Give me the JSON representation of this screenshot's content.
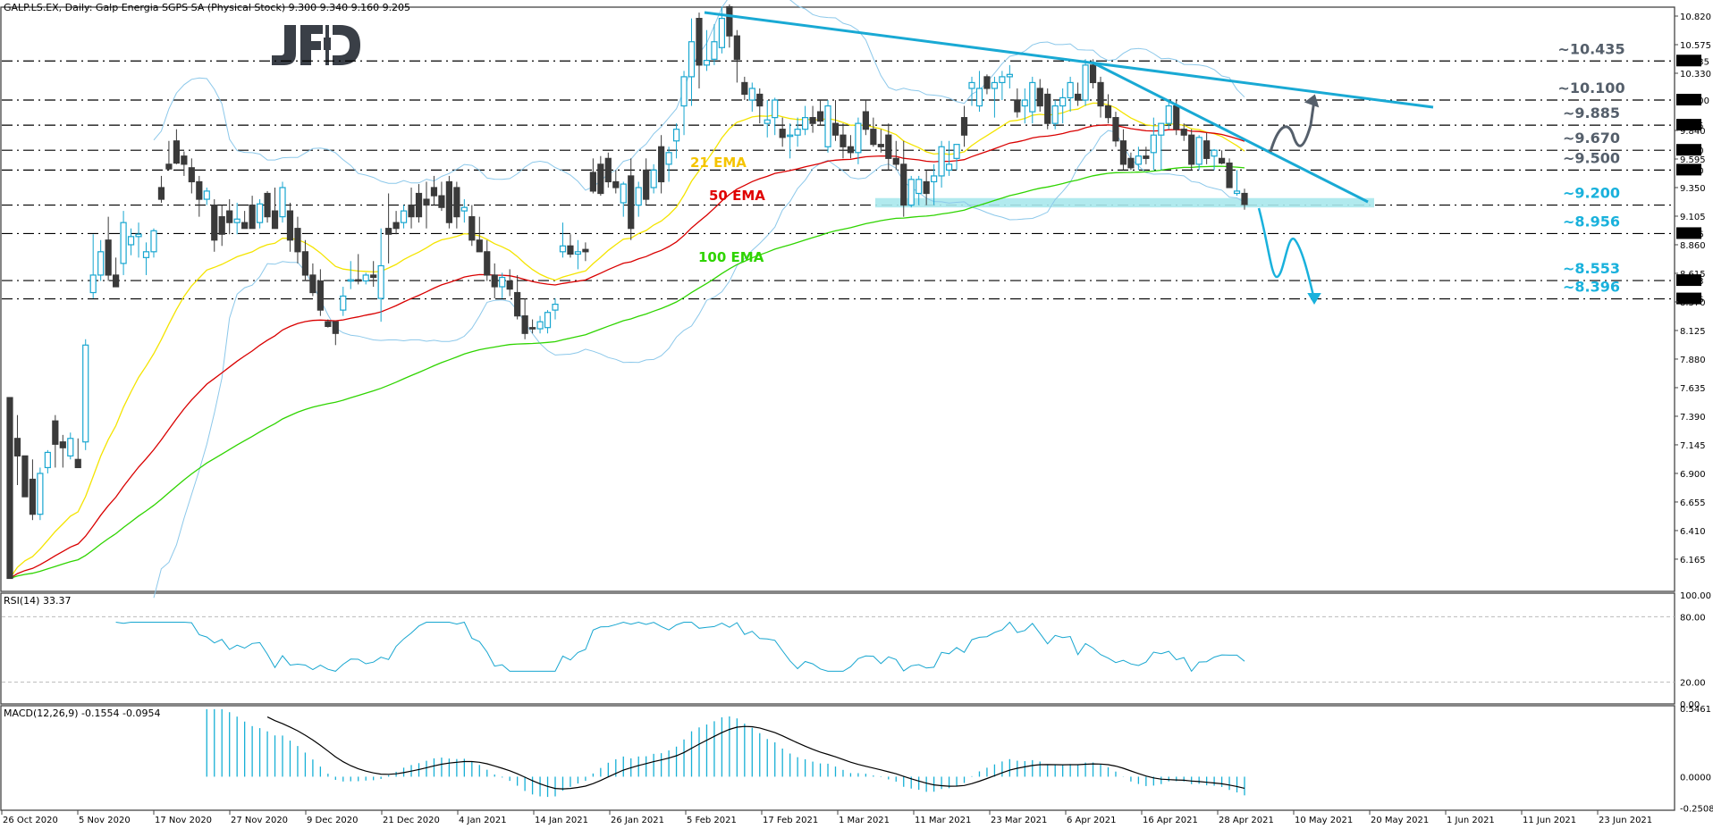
{
  "header": {
    "symbol": "GALP.LS.EX",
    "timeframe": "Daily",
    "instrument": "Galp Energia SGPS SA (Physical Stock)",
    "ohlc": "9.300 9.340 9.160 9.205",
    "title": "GALP.LS.EX, Daily:  Galp Energia SGPS SA (Physical Stock)  9.300 9.340 9.160 9.205"
  },
  "logo": "JFD",
  "colors": {
    "bull": "#17a6d0",
    "bear": "#3a3a3a",
    "trend": "#19a9d4",
    "band": "#a8e8ec",
    "bollinger": "#8cc8ea",
    "ema21": "#f4e400",
    "ema50": "#d90000",
    "ema100": "#2fd400",
    "level_grey": "#555f6b",
    "level_blue": "#19b1dc",
    "rsi": "#17a6d0",
    "macd_hist": "#17b0d6",
    "macd_signal": "#000000"
  },
  "rsi": {
    "label": "RSI(14) 33.37"
  },
  "macd": {
    "label": "MACD(12,26,9) -0.1554 -0.0954"
  },
  "chart_data": [
    {
      "type": "candlestick",
      "title": "GALP.LS.EX, Daily: Galp Energia SGPS SA (Physical Stock)",
      "ohlc_last": {
        "open": 9.3,
        "high": 9.34,
        "low": 9.16,
        "close": 9.205
      },
      "x_tick_labels": [
        "26 Oct 2020",
        "5 Nov 2020",
        "17 Nov 2020",
        "27 Nov 2020",
        "9 Dec 2020",
        "21 Dec 2020",
        "4 Jan 2021",
        "14 Jan 2021",
        "26 Jan 2021",
        "5 Feb 2021",
        "17 Feb 2021",
        "1 Mar 2021",
        "11 Mar 2021",
        "23 Mar 2021",
        "6 Apr 2021",
        "16 Apr 2021",
        "28 Apr 2021",
        "10 May 2021",
        "20 May 2021",
        "1 Jun 2021",
        "11 Jun 2021",
        "23 Jun 2021"
      ],
      "y_tick_labels": [
        "10.820",
        "10.575",
        "10.330",
        "9.840",
        "9.595",
        "9.350",
        "9.105",
        "8.860",
        "8.615",
        "8.370",
        "8.125",
        "7.880",
        "7.635",
        "7.390",
        "7.145",
        "6.900",
        "6.655",
        "6.410",
        "6.165"
      ],
      "ylim": [
        6.0,
        10.9
      ],
      "grid": false,
      "horizontal_levels": [
        {
          "value": 10.435,
          "label": "~10.435",
          "tag": "10.435",
          "color": "grey"
        },
        {
          "value": 10.1,
          "label": "~10.100",
          "tag": "10.100",
          "color": "grey"
        },
        {
          "value": 9.885,
          "label": "~9.885",
          "tag": "9.885",
          "color": "grey"
        },
        {
          "value": 9.67,
          "label": "~9.670",
          "tag": "9.670",
          "color": "grey"
        },
        {
          "value": 9.5,
          "label": "~9.500",
          "tag": "9.500",
          "color": "grey"
        },
        {
          "value": 9.2,
          "label": "~9.200",
          "tag": "",
          "color": "blue"
        },
        {
          "value": 8.956,
          "label": "~8.956",
          "tag": "8.956",
          "color": "blue"
        },
        {
          "value": 8.553,
          "label": "~8.553",
          "tag": "8.553",
          "color": "blue"
        },
        {
          "value": 8.396,
          "label": "~8.396",
          "tag": "8.396",
          "color": "blue"
        }
      ],
      "indicator_labels": [
        {
          "name": "21 EMA",
          "color": "#f5c400"
        },
        {
          "name": "50 EMA",
          "color": "#e00000"
        },
        {
          "name": "100 EMA",
          "color": "#2fd400"
        }
      ],
      "candles": [
        [
          7.55,
          7.55,
          6.0,
          6.0
        ],
        [
          7.2,
          7.4,
          6.8,
          7.05
        ],
        [
          7.05,
          7.05,
          6.7,
          6.7
        ],
        [
          6.85,
          7.02,
          6.5,
          6.55
        ],
        [
          6.55,
          6.95,
          6.5,
          6.9
        ],
        [
          6.95,
          7.1,
          6.9,
          7.08
        ],
        [
          7.35,
          7.4,
          6.95,
          7.15
        ],
        [
          7.17,
          7.23,
          6.95,
          7.12
        ],
        [
          7.05,
          7.25,
          7.02,
          7.2
        ],
        [
          7.02,
          7.2,
          6.95,
          6.95
        ],
        [
          7.17,
          8.05,
          7.1,
          8.0
        ],
        [
          8.45,
          8.95,
          8.4,
          8.6
        ],
        [
          8.6,
          8.9,
          8.55,
          8.8
        ],
        [
          8.9,
          9.1,
          8.55,
          8.6
        ],
        [
          8.6,
          8.75,
          8.55,
          8.5
        ],
        [
          8.7,
          9.15,
          8.6,
          9.05
        ],
        [
          8.86,
          9.0,
          8.77,
          8.93
        ],
        [
          8.93,
          9.05,
          8.75,
          8.95
        ],
        [
          8.75,
          8.88,
          8.6,
          8.8
        ],
        [
          8.8,
          9.0,
          8.75,
          8.98
        ],
        [
          9.35,
          9.45,
          9.22,
          9.25
        ],
        [
          9.55,
          9.75,
          9.5,
          9.51
        ],
        [
          9.75,
          9.85,
          9.55,
          9.56
        ],
        [
          9.62,
          9.66,
          9.45,
          9.55
        ],
        [
          9.52,
          9.6,
          9.3,
          9.4
        ],
        [
          9.4,
          9.45,
          9.1,
          9.25
        ],
        [
          9.25,
          9.35,
          9.2,
          9.32
        ],
        [
          9.2,
          9.25,
          8.8,
          8.9
        ],
        [
          9.1,
          9.2,
          8.85,
          8.95
        ],
        [
          9.15,
          9.25,
          8.95,
          9.05
        ],
        [
          9.05,
          9.22,
          8.95,
          9.08
        ],
        [
          9.05,
          9.15,
          9.0,
          9.0
        ],
        [
          9.2,
          9.28,
          9.0,
          9.0
        ],
        [
          9.05,
          9.25,
          9.0,
          9.21
        ],
        [
          9.3,
          9.32,
          9.05,
          9.1
        ],
        [
          9.15,
          9.35,
          9.0,
          9.0
        ],
        [
          9.1,
          9.4,
          9.05,
          9.35
        ],
        [
          9.15,
          9.22,
          8.8,
          8.9
        ],
        [
          9.0,
          9.1,
          8.7,
          8.8
        ],
        [
          8.8,
          8.9,
          8.55,
          8.6
        ],
        [
          8.6,
          8.7,
          8.42,
          8.45
        ],
        [
          8.55,
          8.65,
          8.25,
          8.3
        ],
        [
          8.2,
          8.22,
          8.15,
          8.16
        ],
        [
          8.2,
          8.2,
          8.0,
          8.1
        ],
        [
          8.3,
          8.5,
          8.25,
          8.42
        ],
        [
          8.55,
          8.72,
          8.48,
          8.56
        ],
        [
          8.56,
          8.78,
          8.52,
          8.55
        ],
        [
          8.55,
          8.62,
          8.52,
          8.6
        ],
        [
          8.6,
          8.72,
          8.5,
          8.58
        ],
        [
          8.4,
          9.0,
          8.2,
          8.68
        ],
        [
          9.0,
          9.3,
          8.7,
          8.95
        ],
        [
          9.05,
          9.15,
          8.95,
          9.0
        ],
        [
          9.05,
          9.2,
          9.0,
          9.15
        ],
        [
          9.2,
          9.35,
          9.0,
          9.1
        ],
        [
          9.3,
          9.38,
          9.05,
          9.1
        ],
        [
          9.25,
          9.4,
          9.0,
          9.2
        ],
        [
          9.35,
          9.45,
          9.2,
          9.28
        ],
        [
          9.28,
          9.4,
          9.15,
          9.18
        ],
        [
          9.4,
          9.45,
          9.0,
          9.05
        ],
        [
          9.35,
          9.4,
          9.0,
          9.1
        ],
        [
          9.15,
          9.25,
          9.05,
          9.18
        ],
        [
          9.1,
          9.2,
          8.85,
          8.9
        ],
        [
          8.9,
          9.1,
          8.8,
          8.8
        ],
        [
          8.8,
          8.9,
          8.55,
          8.6
        ],
        [
          8.6,
          8.7,
          8.4,
          8.5
        ],
        [
          8.5,
          8.62,
          8.4,
          8.58
        ],
        [
          8.55,
          8.65,
          8.42,
          8.48
        ],
        [
          8.45,
          8.6,
          8.22,
          8.25
        ],
        [
          8.25,
          8.4,
          8.05,
          8.1
        ],
        [
          8.15,
          8.22,
          8.1,
          8.14
        ],
        [
          8.14,
          8.25,
          8.1,
          8.2
        ],
        [
          8.15,
          8.3,
          8.1,
          8.28
        ],
        [
          8.3,
          8.4,
          8.22,
          8.35
        ],
        [
          8.8,
          9.05,
          8.75,
          8.85
        ],
        [
          8.85,
          8.95,
          8.75,
          8.78
        ],
        [
          8.78,
          8.9,
          8.65,
          8.8
        ],
        [
          8.82,
          8.88,
          8.72,
          8.8
        ],
        [
          9.48,
          9.6,
          9.3,
          9.32
        ],
        [
          9.55,
          9.62,
          9.28,
          9.3
        ],
        [
          9.6,
          9.65,
          9.35,
          9.4
        ],
        [
          9.4,
          9.5,
          9.3,
          9.35
        ],
        [
          9.22,
          9.4,
          9.1,
          9.38
        ],
        [
          9.45,
          9.6,
          8.9,
          9.0
        ],
        [
          9.2,
          9.4,
          9.1,
          9.35
        ],
        [
          9.5,
          9.6,
          9.2,
          9.25
        ],
        [
          9.35,
          9.55,
          9.3,
          9.5
        ],
        [
          9.7,
          9.8,
          9.3,
          9.4
        ],
        [
          9.55,
          9.7,
          9.4,
          9.65
        ],
        [
          9.75,
          9.9,
          9.6,
          9.85
        ],
        [
          10.05,
          10.35,
          9.8,
          10.3
        ],
        [
          10.3,
          10.8,
          10.05,
          10.6
        ],
        [
          10.8,
          10.85,
          10.2,
          10.4
        ],
        [
          10.4,
          10.7,
          10.35,
          10.44
        ],
        [
          10.45,
          10.75,
          10.4,
          10.6
        ],
        [
          10.55,
          10.9,
          10.5,
          10.8
        ],
        [
          10.9,
          10.92,
          10.55,
          10.65
        ],
        [
          10.65,
          10.7,
          10.25,
          10.45
        ],
        [
          10.25,
          10.3,
          10.1,
          10.15
        ],
        [
          10.1,
          10.25,
          10.0,
          10.2
        ],
        [
          10.15,
          10.2,
          9.9,
          10.05
        ],
        [
          9.9,
          10.1,
          9.78,
          9.93
        ],
        [
          9.95,
          10.12,
          9.8,
          10.1
        ],
        [
          9.85,
          9.95,
          9.7,
          9.78
        ],
        [
          9.8,
          9.9,
          9.6,
          9.8
        ],
        [
          9.8,
          9.95,
          9.7,
          9.85
        ],
        [
          9.85,
          10.05,
          9.8,
          9.95
        ],
        [
          9.95,
          10.05,
          9.82,
          9.9
        ],
        [
          10.0,
          10.1,
          9.88,
          9.92
        ],
        [
          9.7,
          10.1,
          9.65,
          10.05
        ],
        [
          9.9,
          10.1,
          9.75,
          9.8
        ],
        [
          9.8,
          9.9,
          9.6,
          9.7
        ],
        [
          9.7,
          9.8,
          9.6,
          9.65
        ],
        [
          9.65,
          9.95,
          9.55,
          9.9
        ],
        [
          10.0,
          10.1,
          9.8,
          9.85
        ],
        [
          9.85,
          9.95,
          9.7,
          9.72
        ],
        [
          9.72,
          9.85,
          9.65,
          9.7
        ],
        [
          9.8,
          9.9,
          9.5,
          9.6
        ],
        [
          9.6,
          9.75,
          9.5,
          9.55
        ],
        [
          9.55,
          9.75,
          9.1,
          9.2
        ],
        [
          9.2,
          9.45,
          9.18,
          9.42
        ],
        [
          9.3,
          9.45,
          9.2,
          9.42
        ],
        [
          9.4,
          9.5,
          9.2,
          9.3
        ],
        [
          9.4,
          9.55,
          9.2,
          9.45
        ],
        [
          9.45,
          9.75,
          9.35,
          9.7
        ],
        [
          9.5,
          9.75,
          9.45,
          9.55
        ],
        [
          9.6,
          9.72,
          9.5,
          9.72
        ],
        [
          9.95,
          10.05,
          9.7,
          9.8
        ],
        [
          10.2,
          10.3,
          10.05,
          10.25
        ],
        [
          10.05,
          10.35,
          10.0,
          10.2
        ],
        [
          10.3,
          10.32,
          10.15,
          10.2
        ],
        [
          10.2,
          10.3,
          9.95,
          10.25
        ],
        [
          10.25,
          10.35,
          10.1,
          10.3
        ],
        [
          10.3,
          10.4,
          10.2,
          10.32
        ],
        [
          10.1,
          10.2,
          9.95,
          10.0
        ],
        [
          10.05,
          10.2,
          9.9,
          10.1
        ],
        [
          10.0,
          10.3,
          9.9,
          10.25
        ],
        [
          10.2,
          10.28,
          10.0,
          10.05
        ],
        [
          10.15,
          10.2,
          9.85,
          9.9
        ],
        [
          9.9,
          10.1,
          9.85,
          10.05
        ],
        [
          10.05,
          10.2,
          9.9,
          10.12
        ],
        [
          10.12,
          10.3,
          10.0,
          10.25
        ],
        [
          10.15,
          10.25,
          10.05,
          10.1
        ],
        [
          10.1,
          10.45,
          10.05,
          10.4
        ],
        [
          10.4,
          10.45,
          10.2,
          10.25
        ],
        [
          10.25,
          10.3,
          9.95,
          10.05
        ],
        [
          10.05,
          10.15,
          9.9,
          9.95
        ],
        [
          9.95,
          10.0,
          9.7,
          9.75
        ],
        [
          9.75,
          9.85,
          9.5,
          9.55
        ],
        [
          9.6,
          9.65,
          9.5,
          9.52
        ],
        [
          9.55,
          9.7,
          9.5,
          9.62
        ],
        [
          9.62,
          9.7,
          9.55,
          9.6
        ],
        [
          9.65,
          9.95,
          9.5,
          9.8
        ],
        [
          9.8,
          9.9,
          9.5,
          9.9
        ],
        [
          9.9,
          10.1,
          9.85,
          10.05
        ],
        [
          10.05,
          10.1,
          9.8,
          9.85
        ],
        [
          9.85,
          9.9,
          9.75,
          9.8
        ],
        [
          9.8,
          9.85,
          9.5,
          9.55
        ],
        [
          9.55,
          9.8,
          9.5,
          9.78
        ],
        [
          9.75,
          9.82,
          9.55,
          9.6
        ],
        [
          9.62,
          9.68,
          9.5,
          9.67
        ],
        [
          9.6,
          9.67,
          9.55,
          9.56
        ],
        [
          9.56,
          9.6,
          9.35,
          9.35
        ],
        [
          9.3,
          9.5,
          9.28,
          9.32
        ],
        [
          9.3,
          9.34,
          9.16,
          9.205
        ]
      ],
      "series_overlays": [
        "Bollinger Bands (20)",
        "EMA 21",
        "EMA 50",
        "EMA 100"
      ],
      "trendlines": [
        {
          "from": [
            12,
            10.85
          ],
          "to": [
            180,
            10.1
          ],
          "desc": "upper downtrend line from March high"
        },
        {
          "from": [
            146,
            10.42
          ],
          "to": [
            195,
            9.22
          ],
          "desc": "lower downtrend line from June high"
        }
      ],
      "support_zone": [
        9.18,
        9.26
      ],
      "scenario_arrows": [
        {
          "direction": "up",
          "from_price": 9.67,
          "to_price": 10.1,
          "color": "#555f6b"
        },
        {
          "direction": "down",
          "from_price": 9.2,
          "to_price": 8.396,
          "color": "#19b1dc"
        }
      ]
    },
    {
      "type": "line",
      "title": "RSI(14) 33.37",
      "ylim": [
        0,
        100
      ],
      "y_tick_labels": [
        "100.00",
        "80.00",
        "20.00",
        "0.00"
      ],
      "levels": [
        80,
        20
      ],
      "last_value": 33.37
    },
    {
      "type": "bar+line",
      "title": "MACD(12,26,9) -0.1554 -0.0954",
      "ylim": [
        -0.2508,
        0.5461
      ],
      "y_tick_labels": [
        "0.5461",
        "0.0000",
        "-0.2508"
      ],
      "last_values": {
        "macd": -0.1554,
        "signal": -0.0954
      }
    }
  ]
}
